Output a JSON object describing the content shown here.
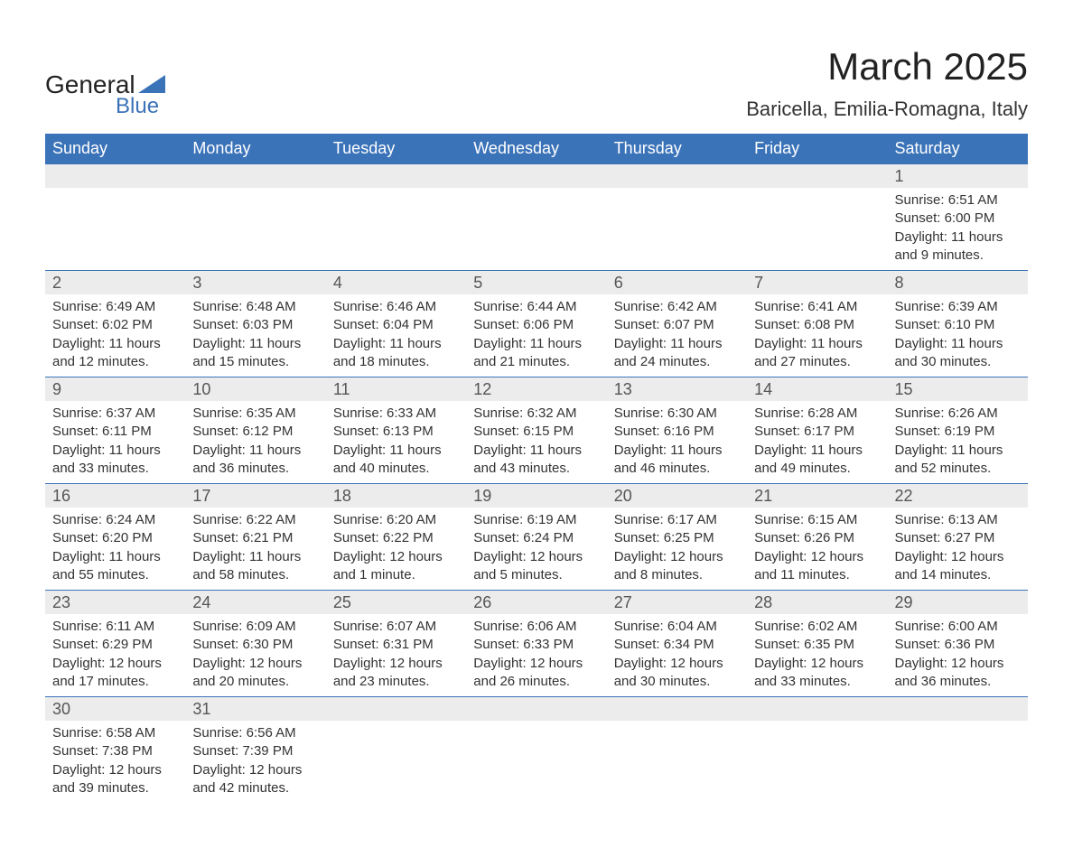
{
  "brand": {
    "main": "General",
    "sub": "Blue"
  },
  "title": "March 2025",
  "location": "Baricella, Emilia-Romagna, Italy",
  "colors": {
    "header_bg": "#3b73b9",
    "header_text": "#ffffff",
    "daynum_bg": "#ececec",
    "daynum_text": "#555555",
    "body_text": "#333333",
    "row_border": "#3b73b9",
    "page_bg": "#ffffff"
  },
  "typography": {
    "title_fontsize": 42,
    "location_fontsize": 22,
    "weekday_fontsize": 18,
    "daynum_fontsize": 18,
    "cell_fontsize": 15
  },
  "calendar": {
    "weekdays": [
      "Sunday",
      "Monday",
      "Tuesday",
      "Wednesday",
      "Thursday",
      "Friday",
      "Saturday"
    ],
    "weeks": [
      [
        null,
        null,
        null,
        null,
        null,
        null,
        {
          "day": "1",
          "sunrise": "Sunrise: 6:51 AM",
          "sunset": "Sunset: 6:00 PM",
          "daylight1": "Daylight: 11 hours",
          "daylight2": "and 9 minutes."
        }
      ],
      [
        {
          "day": "2",
          "sunrise": "Sunrise: 6:49 AM",
          "sunset": "Sunset: 6:02 PM",
          "daylight1": "Daylight: 11 hours",
          "daylight2": "and 12 minutes."
        },
        {
          "day": "3",
          "sunrise": "Sunrise: 6:48 AM",
          "sunset": "Sunset: 6:03 PM",
          "daylight1": "Daylight: 11 hours",
          "daylight2": "and 15 minutes."
        },
        {
          "day": "4",
          "sunrise": "Sunrise: 6:46 AM",
          "sunset": "Sunset: 6:04 PM",
          "daylight1": "Daylight: 11 hours",
          "daylight2": "and 18 minutes."
        },
        {
          "day": "5",
          "sunrise": "Sunrise: 6:44 AM",
          "sunset": "Sunset: 6:06 PM",
          "daylight1": "Daylight: 11 hours",
          "daylight2": "and 21 minutes."
        },
        {
          "day": "6",
          "sunrise": "Sunrise: 6:42 AM",
          "sunset": "Sunset: 6:07 PM",
          "daylight1": "Daylight: 11 hours",
          "daylight2": "and 24 minutes."
        },
        {
          "day": "7",
          "sunrise": "Sunrise: 6:41 AM",
          "sunset": "Sunset: 6:08 PM",
          "daylight1": "Daylight: 11 hours",
          "daylight2": "and 27 minutes."
        },
        {
          "day": "8",
          "sunrise": "Sunrise: 6:39 AM",
          "sunset": "Sunset: 6:10 PM",
          "daylight1": "Daylight: 11 hours",
          "daylight2": "and 30 minutes."
        }
      ],
      [
        {
          "day": "9",
          "sunrise": "Sunrise: 6:37 AM",
          "sunset": "Sunset: 6:11 PM",
          "daylight1": "Daylight: 11 hours",
          "daylight2": "and 33 minutes."
        },
        {
          "day": "10",
          "sunrise": "Sunrise: 6:35 AM",
          "sunset": "Sunset: 6:12 PM",
          "daylight1": "Daylight: 11 hours",
          "daylight2": "and 36 minutes."
        },
        {
          "day": "11",
          "sunrise": "Sunrise: 6:33 AM",
          "sunset": "Sunset: 6:13 PM",
          "daylight1": "Daylight: 11 hours",
          "daylight2": "and 40 minutes."
        },
        {
          "day": "12",
          "sunrise": "Sunrise: 6:32 AM",
          "sunset": "Sunset: 6:15 PM",
          "daylight1": "Daylight: 11 hours",
          "daylight2": "and 43 minutes."
        },
        {
          "day": "13",
          "sunrise": "Sunrise: 6:30 AM",
          "sunset": "Sunset: 6:16 PM",
          "daylight1": "Daylight: 11 hours",
          "daylight2": "and 46 minutes."
        },
        {
          "day": "14",
          "sunrise": "Sunrise: 6:28 AM",
          "sunset": "Sunset: 6:17 PM",
          "daylight1": "Daylight: 11 hours",
          "daylight2": "and 49 minutes."
        },
        {
          "day": "15",
          "sunrise": "Sunrise: 6:26 AM",
          "sunset": "Sunset: 6:19 PM",
          "daylight1": "Daylight: 11 hours",
          "daylight2": "and 52 minutes."
        }
      ],
      [
        {
          "day": "16",
          "sunrise": "Sunrise: 6:24 AM",
          "sunset": "Sunset: 6:20 PM",
          "daylight1": "Daylight: 11 hours",
          "daylight2": "and 55 minutes."
        },
        {
          "day": "17",
          "sunrise": "Sunrise: 6:22 AM",
          "sunset": "Sunset: 6:21 PM",
          "daylight1": "Daylight: 11 hours",
          "daylight2": "and 58 minutes."
        },
        {
          "day": "18",
          "sunrise": "Sunrise: 6:20 AM",
          "sunset": "Sunset: 6:22 PM",
          "daylight1": "Daylight: 12 hours",
          "daylight2": "and 1 minute."
        },
        {
          "day": "19",
          "sunrise": "Sunrise: 6:19 AM",
          "sunset": "Sunset: 6:24 PM",
          "daylight1": "Daylight: 12 hours",
          "daylight2": "and 5 minutes."
        },
        {
          "day": "20",
          "sunrise": "Sunrise: 6:17 AM",
          "sunset": "Sunset: 6:25 PM",
          "daylight1": "Daylight: 12 hours",
          "daylight2": "and 8 minutes."
        },
        {
          "day": "21",
          "sunrise": "Sunrise: 6:15 AM",
          "sunset": "Sunset: 6:26 PM",
          "daylight1": "Daylight: 12 hours",
          "daylight2": "and 11 minutes."
        },
        {
          "day": "22",
          "sunrise": "Sunrise: 6:13 AM",
          "sunset": "Sunset: 6:27 PM",
          "daylight1": "Daylight: 12 hours",
          "daylight2": "and 14 minutes."
        }
      ],
      [
        {
          "day": "23",
          "sunrise": "Sunrise: 6:11 AM",
          "sunset": "Sunset: 6:29 PM",
          "daylight1": "Daylight: 12 hours",
          "daylight2": "and 17 minutes."
        },
        {
          "day": "24",
          "sunrise": "Sunrise: 6:09 AM",
          "sunset": "Sunset: 6:30 PM",
          "daylight1": "Daylight: 12 hours",
          "daylight2": "and 20 minutes."
        },
        {
          "day": "25",
          "sunrise": "Sunrise: 6:07 AM",
          "sunset": "Sunset: 6:31 PM",
          "daylight1": "Daylight: 12 hours",
          "daylight2": "and 23 minutes."
        },
        {
          "day": "26",
          "sunrise": "Sunrise: 6:06 AM",
          "sunset": "Sunset: 6:33 PM",
          "daylight1": "Daylight: 12 hours",
          "daylight2": "and 26 minutes."
        },
        {
          "day": "27",
          "sunrise": "Sunrise: 6:04 AM",
          "sunset": "Sunset: 6:34 PM",
          "daylight1": "Daylight: 12 hours",
          "daylight2": "and 30 minutes."
        },
        {
          "day": "28",
          "sunrise": "Sunrise: 6:02 AM",
          "sunset": "Sunset: 6:35 PM",
          "daylight1": "Daylight: 12 hours",
          "daylight2": "and 33 minutes."
        },
        {
          "day": "29",
          "sunrise": "Sunrise: 6:00 AM",
          "sunset": "Sunset: 6:36 PM",
          "daylight1": "Daylight: 12 hours",
          "daylight2": "and 36 minutes."
        }
      ],
      [
        {
          "day": "30",
          "sunrise": "Sunrise: 6:58 AM",
          "sunset": "Sunset: 7:38 PM",
          "daylight1": "Daylight: 12 hours",
          "daylight2": "and 39 minutes."
        },
        {
          "day": "31",
          "sunrise": "Sunrise: 6:56 AM",
          "sunset": "Sunset: 7:39 PM",
          "daylight1": "Daylight: 12 hours",
          "daylight2": "and 42 minutes."
        },
        null,
        null,
        null,
        null,
        null
      ]
    ]
  }
}
